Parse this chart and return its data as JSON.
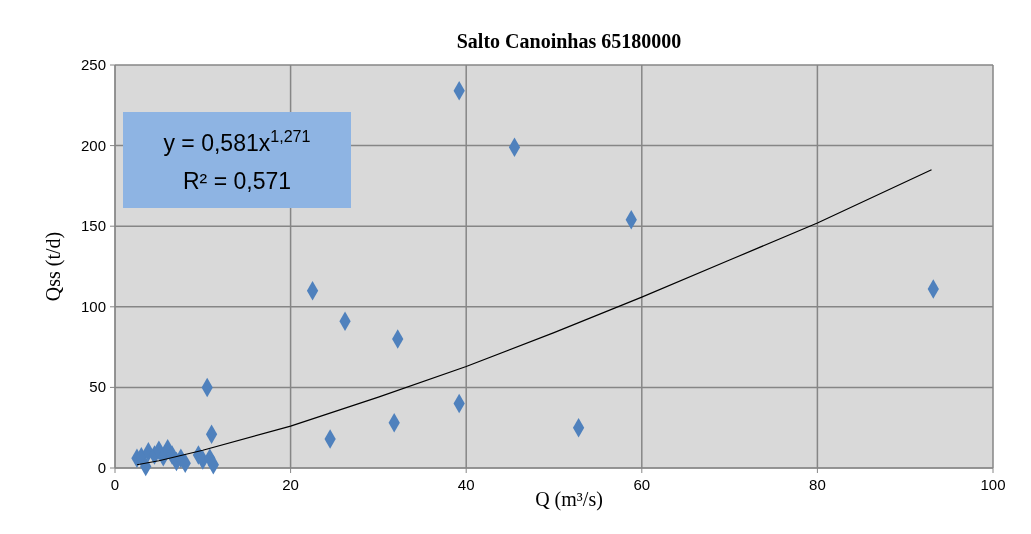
{
  "chart_data": {
    "type": "scatter",
    "title": "Salto Canoinhas 65180000",
    "xlabel": "Q (m³/s)",
    "ylabel": "Qss (t/d)",
    "xlim": [
      0,
      100
    ],
    "xticks": [
      0,
      20,
      40,
      60,
      80,
      100
    ],
    "ylim": [
      0,
      250
    ],
    "yticks": [
      0,
      50,
      100,
      150,
      200,
      250
    ],
    "grid": true,
    "marker": "diamond",
    "annotations": [
      "y = 0,581x$^{1,271}$",
      "R² = 0,571"
    ],
    "series": [
      {
        "type": "scatter",
        "color": "#4f81bd",
        "x": [
          2.5,
          3,
          3.5,
          3.8,
          4.5,
          5,
          5.5,
          6,
          6.5,
          7,
          7.5,
          8,
          9.5,
          10,
          10.5,
          11,
          10.8,
          11.2,
          22.5,
          24.5,
          26.2,
          31.8,
          32.2,
          39.2,
          39.2,
          45.5,
          52.8,
          58.8,
          93.2
        ],
        "values": [
          6,
          7,
          1,
          10,
          8,
          11,
          7,
          12,
          8,
          4,
          6,
          3,
          8,
          5,
          50,
          21,
          6,
          2,
          110,
          18,
          91,
          28,
          80,
          40,
          234,
          199,
          25,
          154,
          111
        ]
      },
      {
        "type": "line",
        "color": "#000000",
        "marker": "none",
        "x": [
          2.5,
          5,
          10,
          20,
          30,
          40,
          50,
          60,
          70,
          80,
          93
        ],
        "values": [
          2,
          4.5,
          11,
          26,
          44,
          63,
          84,
          106,
          129,
          152,
          185
        ]
      }
    ]
  }
}
